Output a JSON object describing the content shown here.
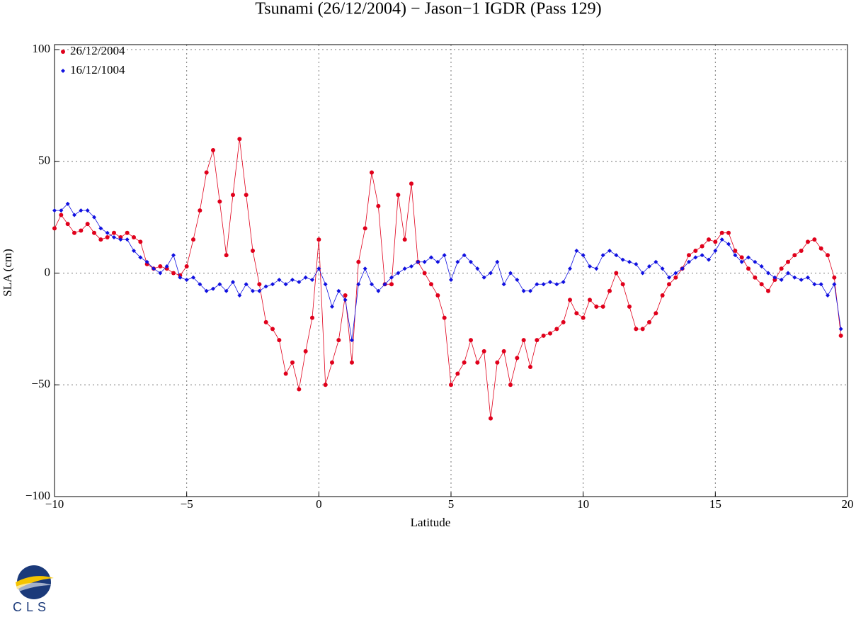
{
  "chart_data": {
    "type": "scatter",
    "title": "Tsunami (26/12/2004) − Jason−1 IGDR (Pass 129)",
    "xlabel": "Latitude",
    "ylabel": "SLA (cm)",
    "xlim": [
      -10,
      20
    ],
    "ylim": [
      -100,
      100
    ],
    "xticks": [
      {
        "value": -10,
        "label": "−10"
      },
      {
        "value": -5,
        "label": "−5"
      },
      0,
      5,
      10,
      15,
      20
    ],
    "yticks": [
      {
        "value": -100,
        "label": "−100"
      },
      {
        "value": -50,
        "label": "−50"
      },
      0,
      50,
      100
    ],
    "grid": true,
    "legend": "upper left",
    "x": [
      -10,
      -9.75,
      -9.5,
      -9.25,
      -9,
      -8.75,
      -8.5,
      -8.25,
      -8,
      -7.75,
      -7.5,
      -7.25,
      -7,
      -6.75,
      -6.5,
      -6.25,
      -6,
      -5.75,
      -5.5,
      -5.25,
      -5,
      -4.75,
      -4.5,
      -4.25,
      -4,
      -3.75,
      -3.5,
      -3.25,
      -3,
      -2.75,
      -2.5,
      -2.25,
      -2,
      -1.75,
      -1.5,
      -1.25,
      -1,
      -0.75,
      -0.5,
      -0.25,
      0,
      0.25,
      0.5,
      0.75,
      1,
      1.25,
      1.5,
      1.75,
      2,
      2.25,
      2.5,
      2.75,
      3,
      3.25,
      3.5,
      3.75,
      4,
      4.25,
      4.5,
      4.75,
      5,
      5.25,
      5.5,
      5.75,
      6,
      6.25,
      6.5,
      6.75,
      7,
      7.25,
      7.5,
      7.75,
      8,
      8.25,
      8.5,
      8.75,
      9,
      9.25,
      9.5,
      9.75,
      10,
      10.25,
      10.5,
      10.75,
      11,
      11.25,
      11.5,
      11.75,
      12,
      12.25,
      12.5,
      12.75,
      13,
      13.25,
      13.5,
      13.75,
      14,
      14.25,
      14.5,
      14.75,
      15,
      15.25,
      15.5,
      15.75,
      16,
      16.25,
      16.5,
      16.75,
      17,
      17.25,
      17.5,
      17.75,
      18,
      18.25,
      18.5,
      18.75,
      19,
      19.25,
      19.5,
      19.75
    ],
    "series": [
      {
        "name": "26/12/2004",
        "color": "#e0001b",
        "marker": "circle",
        "values": [
          20,
          26,
          22,
          18,
          19,
          22,
          18,
          15,
          16,
          18,
          16,
          18,
          16,
          14,
          4,
          2,
          3,
          2,
          0,
          -1,
          3,
          15,
          28,
          45,
          55,
          32,
          8,
          35,
          60,
          35,
          10,
          -5,
          -22,
          -25,
          -30,
          -45,
          -40,
          -52,
          -35,
          -20,
          15,
          -50,
          -40,
          -30,
          -10,
          -40,
          5,
          20,
          45,
          30,
          -5,
          -5,
          35,
          15,
          40,
          5,
          0,
          -5,
          -10,
          -20,
          -50,
          -45,
          -40,
          -30,
          -40,
          -35,
          -65,
          -40,
          -35,
          -50,
          -38,
          -30,
          -42,
          -30,
          -28,
          -27,
          -25,
          -22,
          -12,
          -18,
          -20,
          -12,
          -15,
          -15,
          -8,
          0,
          -5,
          -15,
          -25,
          -25,
          -22,
          -18,
          -10,
          -5,
          -2,
          2,
          8,
          10,
          12,
          15,
          14,
          18,
          18,
          10,
          7,
          2,
          -2,
          -5,
          -8,
          -3,
          2,
          5,
          8,
          10,
          14,
          15,
          11,
          8,
          -2,
          -28
        ]
      },
      {
        "name": "16/12/1004",
        "color": "#1010e0",
        "marker": "diamond",
        "values": [
          28,
          28,
          31,
          26,
          28,
          28,
          25,
          20,
          18,
          16,
          15,
          15,
          10,
          7,
          5,
          2,
          0,
          3,
          8,
          -2,
          -3,
          -2,
          -5,
          -8,
          -7,
          -5,
          -8,
          -4,
          -10,
          -5,
          -8,
          -8,
          -6,
          -5,
          -3,
          -5,
          -3,
          -4,
          -2,
          -3,
          2,
          -5,
          -15,
          -8,
          -12,
          -30,
          -5,
          2,
          -5,
          -8,
          -5,
          -2,
          0,
          2,
          3,
          5,
          5,
          7,
          5,
          8,
          -3,
          5,
          8,
          5,
          2,
          -2,
          0,
          5,
          -5,
          0,
          -3,
          -8,
          -8,
          -5,
          -5,
          -4,
          -5,
          -4,
          2,
          10,
          8,
          3,
          2,
          8,
          10,
          8,
          6,
          5,
          4,
          0,
          3,
          5,
          2,
          -2,
          0,
          2,
          5,
          7,
          8,
          6,
          10,
          15,
          13,
          8,
          5,
          7,
          5,
          3,
          0,
          -2,
          -3,
          0,
          -2,
          -3,
          -2,
          -5,
          -5,
          -10,
          -5,
          -25
        ]
      }
    ],
    "logo": {
      "text": "CLS"
    }
  }
}
